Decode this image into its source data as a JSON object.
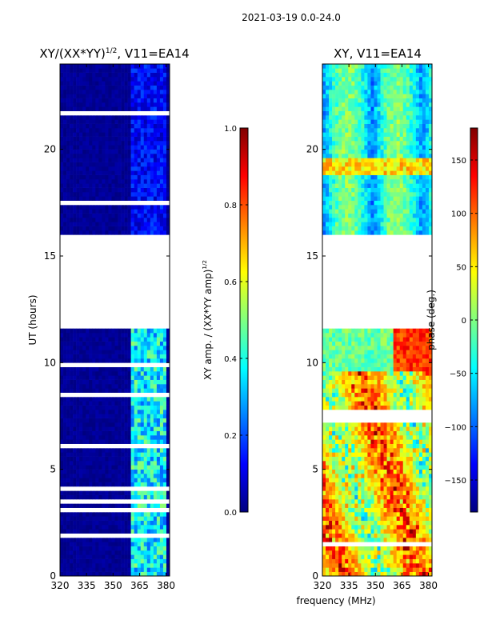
{
  "figure": {
    "suptitle": "2021-03-19 0.0-24.0",
    "xlabel_shared": "frequency (MHz)",
    "ylabel_left": "UT (hours)"
  },
  "colors": {
    "jet": [
      "#000080",
      "#0000ff",
      "#0080ff",
      "#00ffff",
      "#80ff80",
      "#ffff00",
      "#ff8000",
      "#ff0000",
      "#800000"
    ],
    "gap": "#ffffff",
    "frame": "#000000"
  },
  "chart_data": [
    {
      "type": "heatmap",
      "title_main": "XY/(XX*YY)",
      "title_sup": "1/2",
      "title_rest": ", V11=EA14",
      "x_range": [
        320,
        382
      ],
      "y_range": [
        0,
        24
      ],
      "xticks": [
        320,
        335,
        350,
        365,
        380
      ],
      "yticks": [
        0,
        5,
        10,
        15,
        20
      ],
      "colorbar": {
        "label_main": "XY amp. / (XX*YY amp)",
        "label_sup": "1/2",
        "range": [
          0.0,
          1.0
        ],
        "ticks": [
          "0.0",
          "0.2",
          "0.4",
          "0.6",
          "0.8",
          "1.0"
        ],
        "tick_values": [
          0.0,
          0.2,
          0.4,
          0.6,
          0.8,
          1.0
        ]
      },
      "data_gaps_hours": [
        [
          11.65,
          16.05
        ]
      ],
      "bright_band_mhz": [
        360,
        380
      ],
      "note": "mostly low amplitude (~0.0) with elevated values (0.2-0.5) between 360-380 MHz, stronger before 11.6 h"
    },
    {
      "type": "heatmap",
      "title": "XY, V11=EA14",
      "x_range": [
        320,
        382
      ],
      "y_range": [
        0,
        24
      ],
      "xticks": [
        320,
        335,
        350,
        365,
        380
      ],
      "yticks": [
        0,
        5,
        10,
        15,
        20
      ],
      "colorbar": {
        "label": "phase (deg.)",
        "range": [
          -180,
          180
        ],
        "ticks": [
          "−150",
          "−100",
          "−50",
          "0",
          "50",
          "100",
          "150"
        ],
        "tick_values": [
          -150,
          -100,
          -50,
          0,
          50,
          100,
          150
        ]
      },
      "data_gaps_hours": [
        [
          11.65,
          16.05
        ]
      ],
      "note": "phase varies with frequency and time; mostly blue/cyan at 16-24 h, mixed red/yellow/green at 0-9 h"
    }
  ]
}
